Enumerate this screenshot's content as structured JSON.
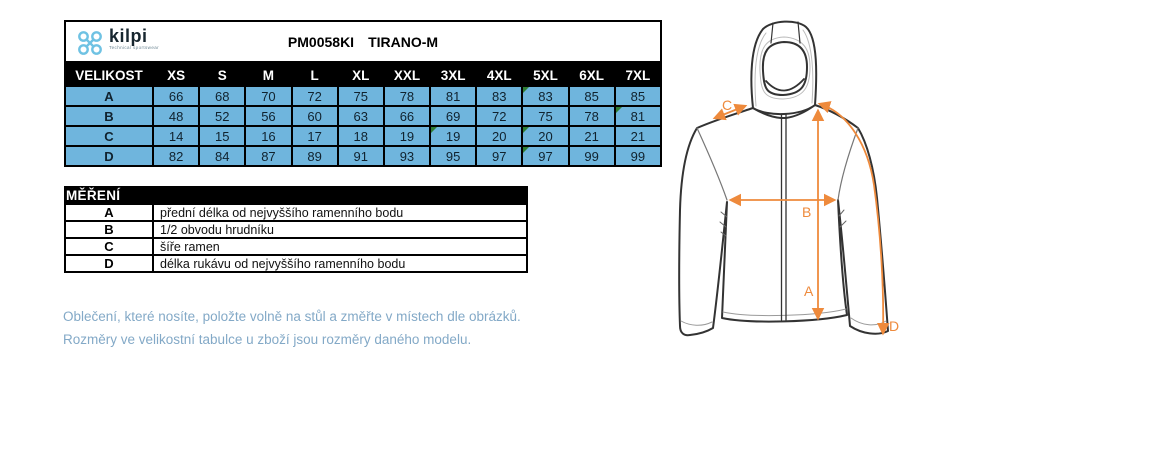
{
  "header": {
    "brand": "kilpi",
    "tagline": "Technical sportswear",
    "product_code": "PM0058KI",
    "product_name": "TIRANO-M"
  },
  "size_table": {
    "size_label_header": "VELIKOST",
    "columns": [
      "XS",
      "S",
      "M",
      "L",
      "XL",
      "XXL",
      "3XL",
      "4XL",
      "5XL",
      "6XL",
      "7XL"
    ],
    "rows": [
      {
        "label": "A",
        "values": [
          66,
          68,
          70,
          72,
          75,
          78,
          81,
          83,
          83,
          85,
          85
        ],
        "flagged_columns": [
          "5XL"
        ]
      },
      {
        "label": "B",
        "values": [
          48,
          52,
          56,
          60,
          63,
          66,
          69,
          72,
          75,
          78,
          81
        ],
        "flagged_columns": [
          "7XL"
        ]
      },
      {
        "label": "C",
        "values": [
          14,
          15,
          16,
          17,
          18,
          19,
          19,
          20,
          20,
          21,
          21
        ],
        "flagged_columns": [
          "3XL",
          "5XL"
        ]
      },
      {
        "label": "D",
        "values": [
          82,
          84,
          87,
          89,
          91,
          93,
          95,
          97,
          97,
          99,
          99
        ],
        "flagged_columns": [
          "5XL"
        ]
      }
    ]
  },
  "measurement_table": {
    "header": "MĚŘENÍ",
    "rows": [
      {
        "label": "A",
        "description": "přední délka od nejvyššího ramenního bodu"
      },
      {
        "label": "B",
        "description": "1/2 obvodu hrudníku"
      },
      {
        "label": "C",
        "description": "šíře ramen"
      },
      {
        "label": "D",
        "description": "délka rukávu od nejvyššího ramenního bodu"
      }
    ]
  },
  "notes": [
    "Oblečení, které nosíte, položte volně na stůl a změřte v místech dle obrázků.",
    "Rozměry ve velikostní tabulce u zboží jsou rozměry daného modelu."
  ],
  "diagram": {
    "labels": [
      "A",
      "B",
      "C",
      "D"
    ]
  },
  "colors": {
    "cell_blue": "#6FB5DD",
    "flag_green": "#2f7d32",
    "arrow_orange": "#EE8A3C",
    "note_blue": "#83A9C7",
    "logo_blue": "#6FC2E3"
  }
}
